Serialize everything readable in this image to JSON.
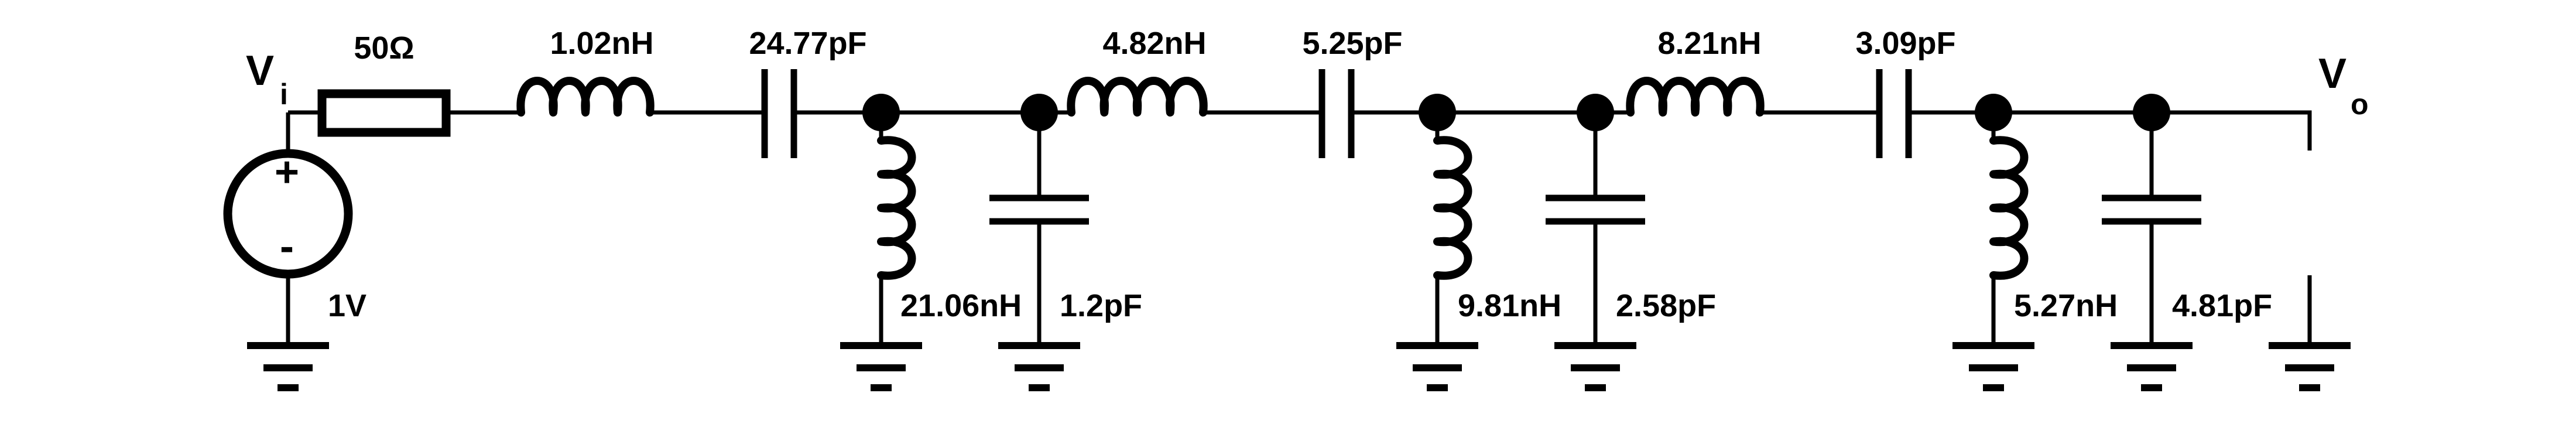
{
  "diagram": {
    "input_label": "V",
    "input_subscript": "i",
    "output_label": "V",
    "output_subscript": "o",
    "source_value": "1V",
    "source_plus": "+",
    "source_minus": "-",
    "resistor_value": "50Ω",
    "series": [
      {
        "inductor": "1.02nH",
        "capacitor": "24.77pF"
      },
      {
        "inductor": "4.82nH",
        "capacitor": "5.25pF"
      },
      {
        "inductor": "8.21nH",
        "capacitor": "3.09pF"
      }
    ],
    "shunt": [
      {
        "inductor": "21.06nH",
        "capacitor": "1.2pF"
      },
      {
        "inductor": "9.81nH",
        "capacitor": "2.58pF"
      },
      {
        "inductor": "5.27nH",
        "capacitor": "4.81pF"
      }
    ]
  }
}
